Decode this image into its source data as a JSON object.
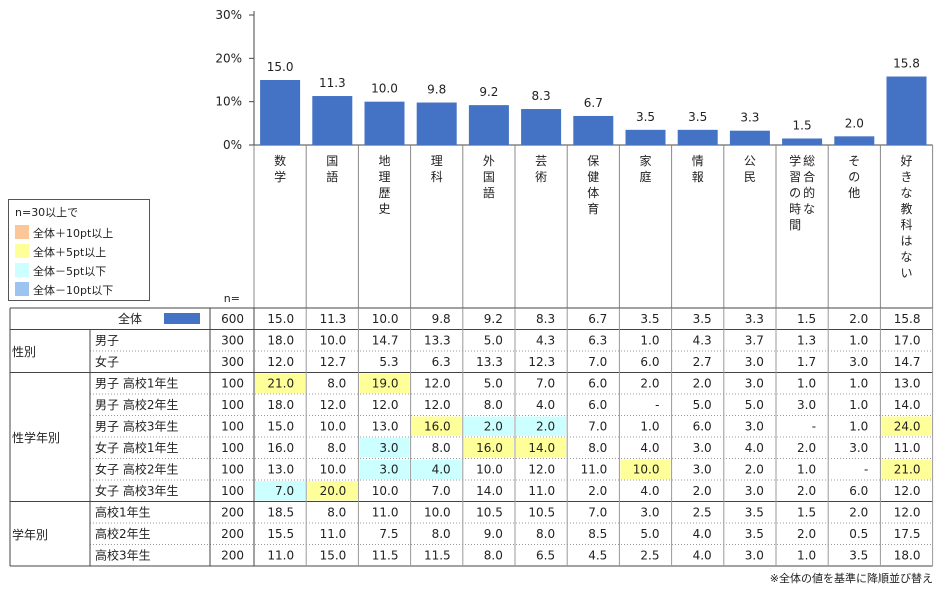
{
  "chart_data": {
    "type": "bar",
    "yticks": [
      "0%",
      "10%",
      "20%",
      "30%"
    ],
    "ylim": [
      0,
      30
    ],
    "categories": [
      "数学",
      "国語",
      "地理歴史",
      "理科",
      "外国語",
      "芸術",
      "保健体育",
      "家庭",
      "情報",
      "公民",
      "総合的な学習の時間",
      "その他",
      "好きな教科はない"
    ],
    "category_lines": [
      [
        "数",
        "学"
      ],
      [
        "国",
        "語"
      ],
      [
        "地",
        "理",
        "歴",
        "史"
      ],
      [
        "理",
        "科"
      ],
      [
        "外",
        "国",
        "語"
      ],
      [
        "芸",
        "術"
      ],
      [
        "保",
        "健",
        "体",
        "育"
      ],
      [
        "家",
        "庭"
      ],
      [
        "情",
        "報"
      ],
      [
        "公",
        "民"
      ],
      [
        "総合的な",
        "学習の時間"
      ],
      [
        "そ",
        "の",
        "他"
      ],
      [
        "好",
        "き",
        "な",
        "教",
        "科",
        "は",
        "な",
        "い"
      ]
    ],
    "values": [
      15.0,
      11.3,
      10.0,
      9.8,
      9.2,
      8.3,
      6.7,
      3.5,
      3.5,
      3.3,
      1.5,
      2.0,
      15.8
    ],
    "value_labels": [
      "15.0",
      "11.3",
      "10.0",
      "9.8",
      "9.2",
      "8.3",
      "6.7",
      "3.5",
      "3.5",
      "3.3",
      "1.5",
      "2.0",
      "15.8"
    ],
    "bar_color": "#4472C4"
  },
  "n_header": "n=",
  "legend": {
    "title": "n=30以上で",
    "items": [
      {
        "label": "全体＋10pt以上",
        "color": "#FBC698"
      },
      {
        "label": "全体＋5pt以上",
        "color": "#FFFF99"
      },
      {
        "label": "全体－5pt以下",
        "color": "#CCFFFF"
      },
      {
        "label": "全体－10pt以下",
        "color": "#9DC3F0"
      }
    ]
  },
  "table": {
    "groups": [
      {
        "label": "",
        "rows": [
          {
            "label": "全体",
            "n": "600",
            "swatch": true,
            "values": [
              "15.0",
              "11.3",
              "10.0",
              "9.8",
              "9.2",
              "8.3",
              "6.7",
              "3.5",
              "3.5",
              "3.3",
              "1.5",
              "2.0",
              "15.8"
            ],
            "hl": [
              0,
              0,
              0,
              0,
              0,
              0,
              0,
              0,
              0,
              0,
              0,
              0,
              0
            ]
          }
        ]
      },
      {
        "label": "性別",
        "rows": [
          {
            "label": "男子",
            "n": "300",
            "values": [
              "18.0",
              "10.0",
              "14.7",
              "13.3",
              "5.0",
              "4.3",
              "6.3",
              "1.0",
              "4.3",
              "3.7",
              "1.3",
              "1.0",
              "17.0"
            ],
            "hl": [
              0,
              0,
              0,
              0,
              0,
              0,
              0,
              0,
              0,
              0,
              0,
              0,
              0
            ]
          },
          {
            "label": "女子",
            "n": "300",
            "values": [
              "12.0",
              "12.7",
              "5.3",
              "6.3",
              "13.3",
              "12.3",
              "7.0",
              "6.0",
              "2.7",
              "3.0",
              "1.7",
              "3.0",
              "14.7"
            ],
            "hl": [
              0,
              0,
              0,
              0,
              0,
              0,
              0,
              0,
              0,
              0,
              0,
              0,
              0
            ]
          }
        ]
      },
      {
        "label": "性学年別",
        "rows": [
          {
            "label": "男子  高校1年生",
            "n": "100",
            "values": [
              "21.0",
              "8.0",
              "19.0",
              "12.0",
              "5.0",
              "7.0",
              "6.0",
              "2.0",
              "2.0",
              "3.0",
              "1.0",
              "1.0",
              "13.0"
            ],
            "hl": [
              1,
              0,
              1,
              0,
              0,
              0,
              0,
              0,
              0,
              0,
              0,
              0,
              0
            ]
          },
          {
            "label": "男子  高校2年生",
            "n": "100",
            "values": [
              "18.0",
              "12.0",
              "12.0",
              "12.0",
              "8.0",
              "4.0",
              "6.0",
              "-",
              "5.0",
              "5.0",
              "3.0",
              "1.0",
              "14.0"
            ],
            "hl": [
              0,
              0,
              0,
              0,
              0,
              0,
              0,
              0,
              0,
              0,
              0,
              0,
              0
            ]
          },
          {
            "label": "男子  高校3年生",
            "n": "100",
            "values": [
              "15.0",
              "10.0",
              "13.0",
              "16.0",
              "2.0",
              "2.0",
              "7.0",
              "1.0",
              "6.0",
              "3.0",
              "-",
              "1.0",
              "24.0"
            ],
            "hl": [
              0,
              0,
              0,
              1,
              2,
              2,
              0,
              0,
              0,
              0,
              0,
              0,
              1
            ]
          },
          {
            "label": "女子  高校1年生",
            "n": "100",
            "values": [
              "16.0",
              "8.0",
              "3.0",
              "8.0",
              "16.0",
              "14.0",
              "8.0",
              "4.0",
              "3.0",
              "4.0",
              "2.0",
              "3.0",
              "11.0"
            ],
            "hl": [
              0,
              0,
              2,
              0,
              1,
              1,
              0,
              0,
              0,
              0,
              0,
              0,
              0
            ]
          },
          {
            "label": "女子  高校2年生",
            "n": "100",
            "values": [
              "13.0",
              "10.0",
              "3.0",
              "4.0",
              "10.0",
              "12.0",
              "11.0",
              "10.0",
              "3.0",
              "2.0",
              "1.0",
              "-",
              "21.0"
            ],
            "hl": [
              0,
              0,
              2,
              2,
              0,
              0,
              0,
              1,
              0,
              0,
              0,
              0,
              1
            ]
          },
          {
            "label": "女子  高校3年生",
            "n": "100",
            "values": [
              "7.0",
              "20.0",
              "10.0",
              "7.0",
              "14.0",
              "11.0",
              "2.0",
              "4.0",
              "2.0",
              "3.0",
              "2.0",
              "6.0",
              "12.0"
            ],
            "hl": [
              2,
              1,
              0,
              0,
              0,
              0,
              0,
              0,
              0,
              0,
              0,
              0,
              0
            ]
          }
        ]
      },
      {
        "label": "学年別",
        "rows": [
          {
            "label": "高校1年生",
            "n": "200",
            "values": [
              "18.5",
              "8.0",
              "11.0",
              "10.0",
              "10.5",
              "10.5",
              "7.0",
              "3.0",
              "2.5",
              "3.5",
              "1.5",
              "2.0",
              "12.0"
            ],
            "hl": [
              0,
              0,
              0,
              0,
              0,
              0,
              0,
              0,
              0,
              0,
              0,
              0,
              0
            ]
          },
          {
            "label": "高校2年生",
            "n": "200",
            "values": [
              "15.5",
              "11.0",
              "7.5",
              "8.0",
              "9.0",
              "8.0",
              "8.5",
              "5.0",
              "4.0",
              "3.5",
              "2.0",
              "0.5",
              "17.5"
            ],
            "hl": [
              0,
              0,
              0,
              0,
              0,
              0,
              0,
              0,
              0,
              0,
              0,
              0,
              0
            ]
          },
          {
            "label": "高校3年生",
            "n": "200",
            "values": [
              "11.0",
              "15.0",
              "11.5",
              "11.5",
              "8.0",
              "6.5",
              "4.5",
              "2.5",
              "4.0",
              "3.0",
              "1.0",
              "3.5",
              "18.0"
            ],
            "hl": [
              0,
              0,
              0,
              0,
              0,
              0,
              0,
              0,
              0,
              0,
              0,
              0,
              0
            ]
          }
        ]
      }
    ],
    "hl_colors": [
      "",
      "#FFFF99",
      "#CCFFFF"
    ]
  },
  "note": "※全体の値を基準に降順並び替え"
}
